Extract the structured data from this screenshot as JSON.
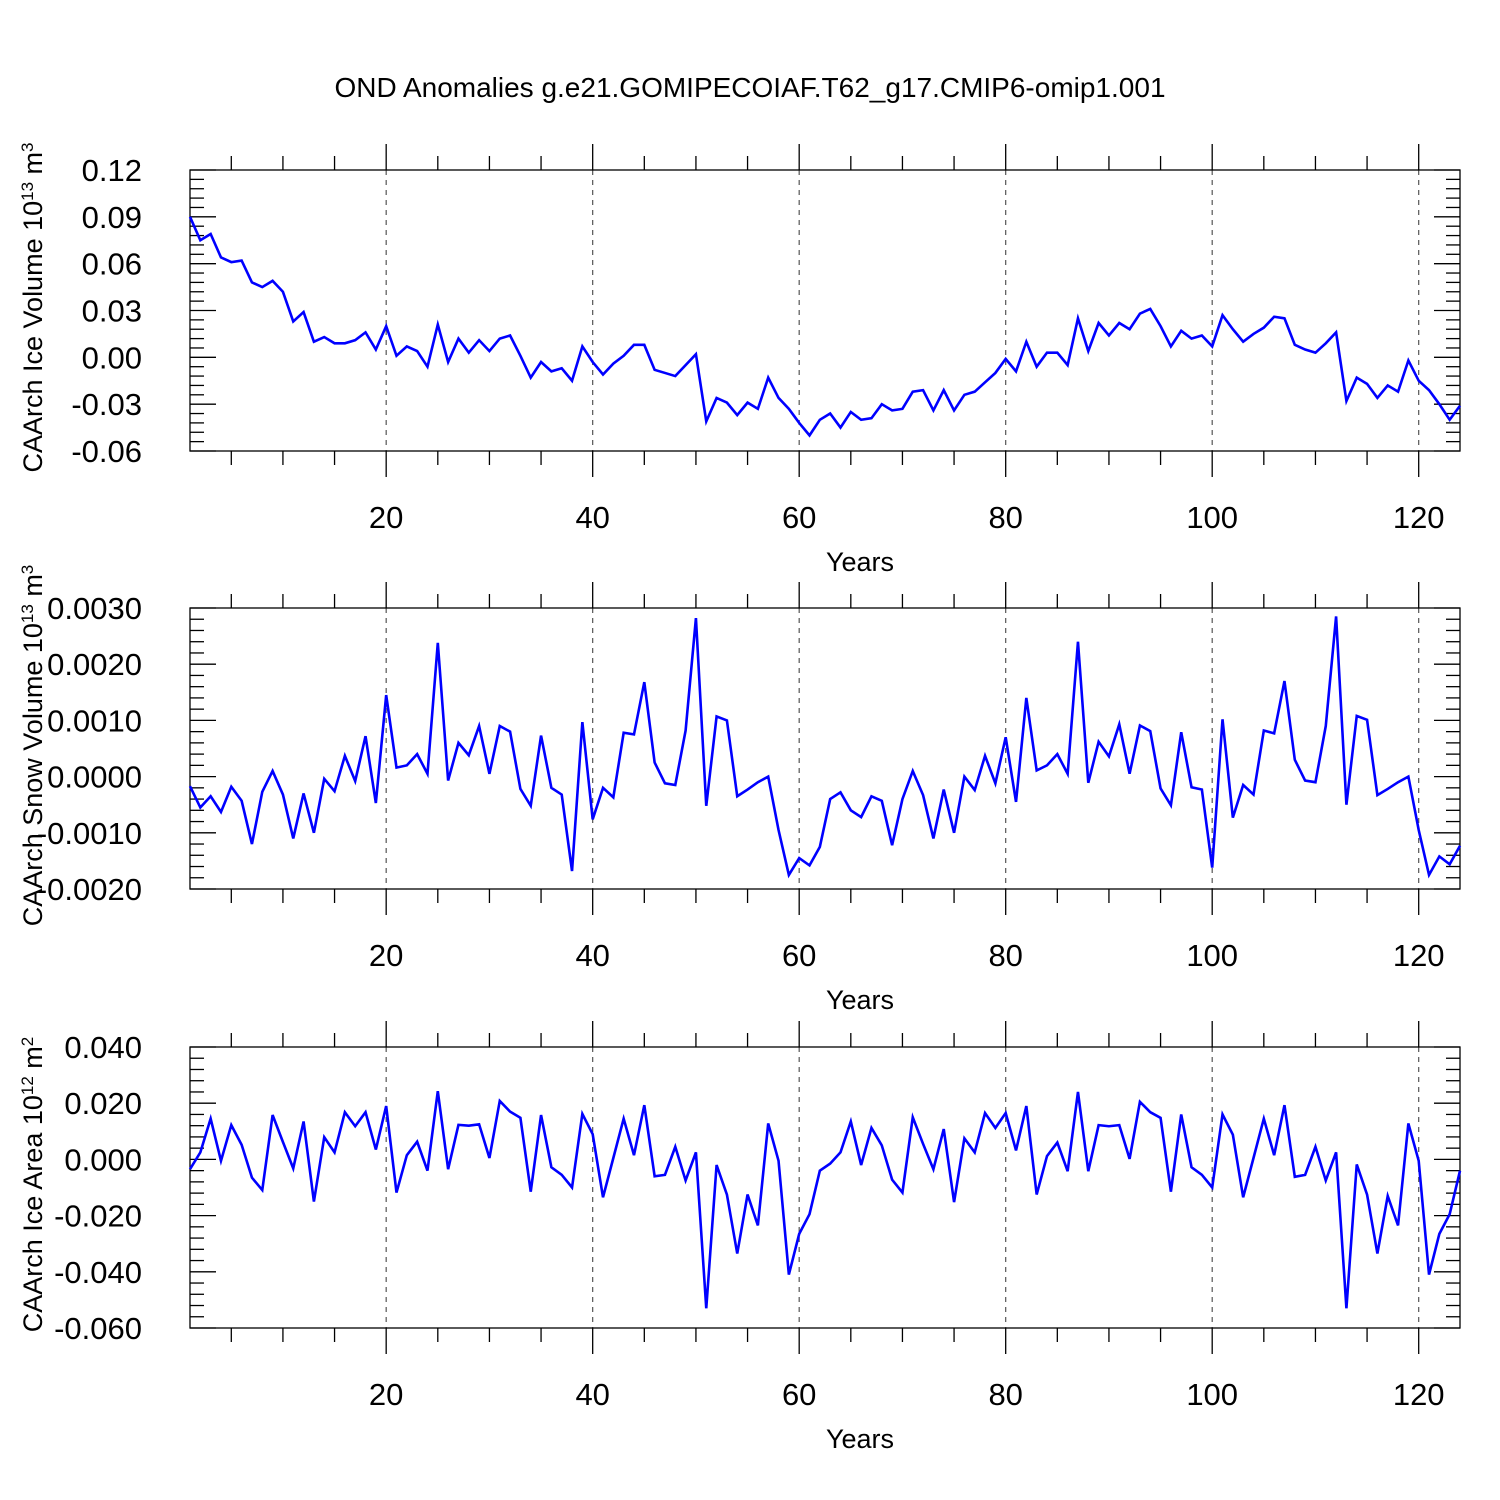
{
  "title": "OND Anomalies g.e21.GOMIPECOIAF.T62_g17.CMIP6-omip1.001",
  "line_color": "#0000ff",
  "chart_data": [
    {
      "type": "line",
      "xlabel": "Years",
      "ylabel": {
        "text": "CAArch Ice Volume 10",
        "sup": "13",
        "unit": " m",
        "unit_sup": "3"
      },
      "xlim": [
        1,
        124
      ],
      "ylim": [
        -0.06,
        0.12
      ],
      "x_ticks": [
        20,
        40,
        60,
        80,
        100,
        120
      ],
      "x_tick_labels": [
        "20",
        "40",
        "60",
        "80",
        "100",
        "120"
      ],
      "y_ticks": [
        -0.06,
        -0.03,
        0.0,
        0.03,
        0.06,
        0.09,
        0.12
      ],
      "y_tick_labels": [
        "-0.06",
        "-0.03",
        "0.00",
        "0.03",
        "0.06",
        "0.09",
        "0.12"
      ],
      "grid": "vertical dashed at major x ticks",
      "series": [
        {
          "x_start": 1,
          "values": [
            0.09,
            0.075,
            0.079,
            0.064,
            0.061,
            0.062,
            0.048,
            0.045,
            0.049,
            0.042,
            0.023,
            0.029,
            0.01,
            0.013,
            0.009,
            0.009,
            0.011,
            0.016,
            0.005,
            0.02,
            0.001,
            0.007,
            0.004,
            -0.006,
            0.021,
            -0.003,
            0.012,
            0.003,
            0.011,
            0.004,
            0.012,
            0.014,
            0.001,
            -0.013,
            -0.003,
            -0.009,
            -0.007,
            -0.015,
            0.007,
            -0.003,
            -0.011,
            -0.004,
            0.001,
            0.008,
            0.008,
            -0.008,
            -0.01,
            -0.012,
            -0.005,
            0.002,
            -0.041,
            -0.026,
            -0.029,
            -0.037,
            -0.029,
            -0.033,
            -0.013,
            -0.026,
            -0.033,
            -0.042,
            -0.05,
            -0.04,
            -0.036,
            -0.045,
            -0.035,
            -0.04,
            -0.039,
            -0.03,
            -0.034,
            -0.033,
            -0.022,
            -0.021,
            -0.034,
            -0.021,
            -0.034,
            -0.024,
            -0.022,
            -0.016,
            -0.01,
            -0.001,
            -0.009,
            0.01,
            -0.006,
            0.003,
            0.003,
            -0.005,
            0.025,
            0.004,
            0.022,
            0.014,
            0.022,
            0.018,
            0.028,
            0.031,
            0.02,
            0.007,
            0.017,
            0.012,
            0.014,
            0.007,
            0.027,
            0.018,
            0.01,
            0.015,
            0.019,
            0.026,
            0.025,
            0.008,
            0.005,
            0.003,
            0.009,
            0.016,
            -0.028,
            -0.013,
            -0.017,
            -0.026,
            -0.018,
            -0.022,
            -0.002,
            -0.015,
            -0.021,
            -0.03,
            -0.04,
            -0.031
          ]
        }
      ]
    },
    {
      "type": "line",
      "xlabel": "Years",
      "ylabel": {
        "text": "CAArch Snow Volume 10",
        "sup": "13",
        "unit": " m",
        "unit_sup": "3"
      },
      "xlim": [
        1,
        124
      ],
      "ylim": [
        -0.002,
        0.003
      ],
      "x_ticks": [
        20,
        40,
        60,
        80,
        100,
        120
      ],
      "x_tick_labels": [
        "20",
        "40",
        "60",
        "80",
        "100",
        "120"
      ],
      "y_ticks": [
        -0.002,
        -0.001,
        0.0,
        0.001,
        0.002,
        0.003
      ],
      "y_tick_labels": [
        "-0.0020",
        "-0.0010",
        "0.0000",
        "0.0010",
        "0.0020",
        "0.0030"
      ],
      "grid": "vertical dashed at major x ticks",
      "series": [
        {
          "x_start": 1,
          "values": [
            -0.00017,
            -0.00055,
            -0.00035,
            -0.00063,
            -0.00018,
            -0.00043,
            -0.0012,
            -0.00027,
            0.0001,
            -0.00032,
            -0.0011,
            -0.0003,
            -0.001,
            -4e-05,
            -0.00026,
            0.00037,
            -8e-05,
            0.00072,
            -0.00047,
            0.00145,
            0.00016,
            0.0002,
            0.0004,
            5e-05,
            0.00238,
            -7e-05,
            0.0006,
            0.00038,
            0.0009,
            5e-05,
            0.0009,
            0.0008,
            -0.00022,
            -0.00052,
            0.00073,
            -0.0002,
            -0.00032,
            -0.00168,
            0.00097,
            -0.00076,
            -0.0002,
            -0.00037,
            0.00078,
            0.00075,
            0.00168,
            0.00025,
            -0.00012,
            -0.00015,
            0.00082,
            0.00282,
            -0.00052,
            0.00107,
            0.001,
            -0.00035,
            -0.00023,
            -0.0001,
            0.0,
            -0.00095,
            -0.00175,
            -0.00145,
            -0.00158,
            -0.00125,
            -0.0004,
            -0.00028,
            -0.0006,
            -0.00072,
            -0.00035,
            -0.00043,
            -0.00122,
            -0.0004,
            0.0001,
            -0.00033,
            -0.0011,
            -0.00023,
            -0.001,
            0.0,
            -0.00024,
            0.00037,
            -0.00012,
            0.0007,
            -0.00045,
            0.0014,
            0.00011,
            0.0002,
            0.0004,
            5e-05,
            0.0024,
            -0.00011,
            0.00062,
            0.00036,
            0.00093,
            5e-05,
            0.00091,
            0.00081,
            -0.00021,
            -0.00051,
            0.00079,
            -0.00019,
            -0.00023,
            -0.00162,
            0.00102,
            -0.00073,
            -0.00015,
            -0.00032,
            0.00082,
            0.00077,
            0.0017,
            0.0003,
            -7e-05,
            -0.0001,
            0.0009,
            0.00285,
            -0.0005,
            0.00108,
            0.00101,
            -0.00033,
            -0.00022,
            -0.0001,
            0.0,
            -0.00095,
            -0.00175,
            -0.00142,
            -0.00156,
            -0.00123
          ]
        }
      ]
    },
    {
      "type": "line",
      "xlabel": "Years",
      "ylabel": {
        "text": "CAArch Ice Area 10",
        "sup": "12",
        "unit": " m",
        "unit_sup": "2"
      },
      "xlim": [
        1,
        124
      ],
      "ylim": [
        -0.06,
        0.04
      ],
      "x_ticks": [
        20,
        40,
        60,
        80,
        100,
        120
      ],
      "x_tick_labels": [
        "20",
        "40",
        "60",
        "80",
        "100",
        "120"
      ],
      "y_ticks": [
        -0.06,
        -0.04,
        -0.02,
        0.0,
        0.02,
        0.04
      ],
      "y_tick_labels": [
        "-0.060",
        "-0.040",
        "-0.020",
        "0.000",
        "0.020",
        "0.040"
      ],
      "grid": "vertical dashed at major x ticks",
      "series": [
        {
          "x_start": 1,
          "values": [
            -0.0035,
            0.0025,
            0.0145,
            -0.0005,
            0.0122,
            0.0052,
            -0.0065,
            -0.0109,
            0.0158,
            0.0062,
            -0.0032,
            0.0135,
            -0.015,
            0.0079,
            0.0025,
            0.0168,
            0.0118,
            0.0168,
            0.0035,
            0.019,
            -0.0118,
            0.0015,
            0.0063,
            -0.004,
            0.0243,
            -0.0035,
            0.0123,
            0.012,
            0.0125,
            0.0005,
            0.0208,
            0.017,
            0.0148,
            -0.0115,
            0.0158,
            -0.0028,
            -0.0055,
            -0.01,
            0.0162,
            0.009,
            -0.0135,
            0.0005,
            0.0145,
            0.0015,
            0.0193,
            -0.006,
            -0.0055,
            0.0045,
            -0.0075,
            0.0025,
            -0.053,
            -0.002,
            -0.0125,
            -0.0335,
            -0.0125,
            -0.0235,
            0.0128,
            -0.0005,
            -0.041,
            -0.0265,
            -0.0195,
            -0.004,
            -0.0015,
            0.0025,
            0.0135,
            -0.002,
            0.0112,
            0.005,
            -0.0072,
            -0.0118,
            0.015,
            0.0055,
            -0.0035,
            0.0108,
            -0.0152,
            0.0075,
            0.0025,
            0.0165,
            0.0112,
            0.0165,
            0.0032,
            0.019,
            -0.0125,
            0.0012,
            0.006,
            -0.0042,
            0.024,
            -0.0042,
            0.0122,
            0.0118,
            0.0122,
            0.0002,
            0.0205,
            0.0168,
            0.0148,
            -0.0115,
            0.016,
            -0.0028,
            -0.0055,
            -0.01,
            0.016,
            0.0088,
            -0.0135,
            0.0005,
            0.0145,
            0.0015,
            0.0193,
            -0.0062,
            -0.0055,
            0.0045,
            -0.0075,
            0.0025,
            -0.053,
            -0.0018,
            -0.0125,
            -0.0335,
            -0.013,
            -0.0235,
            0.0128,
            -0.0005,
            -0.041,
            -0.0265,
            -0.0195,
            -0.004
          ]
        }
      ]
    }
  ]
}
